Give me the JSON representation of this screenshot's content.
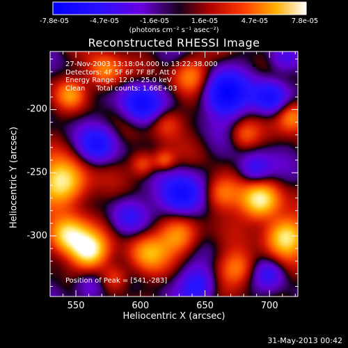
{
  "colorbar": {
    "tick_labels": [
      "-7.8e-05",
      "-4.7e-05",
      "-1.6e-05",
      "1.6e-05",
      "4.7e-05",
      "7.8e-05"
    ],
    "units_label": "(photons cm⁻² s⁻¹ asec⁻²)",
    "range": [
      -7.8e-05,
      7.8e-05
    ]
  },
  "chart_data": {
    "type": "heatmap",
    "title": "Reconstructed RHESSI Image",
    "xlabel": "Heliocentric X (arcsec)",
    "ylabel": "Heliocentric Y (arcsec)",
    "xlim": [
      530,
      722
    ],
    "ylim": [
      -348,
      -154
    ],
    "x_ticks": [
      "550",
      "600",
      "650",
      "700"
    ],
    "y_ticks": [
      "-200",
      "-250",
      "-300"
    ],
    "overlay_lines": [
      "27-Nov-2003 13:18:04.000 to 13:22:38.000",
      "Detectors: 4F 5F 6F 7F 8F, Att 0",
      "Energy Range: 12.0 - 25.0 keV",
      "Clean     Total counts: 1.66E+03"
    ],
    "peak_label": "Position of Peak = [541,-283]",
    "peak_position": [
      541,
      -283
    ],
    "blobs": [
      {
        "x": 540,
        "y": -258,
        "amp": 1.0,
        "s": 13
      },
      {
        "x": 543,
        "y": -300,
        "amp": 0.95,
        "s": 11
      },
      {
        "x": 560,
        "y": -312,
        "amp": 0.9,
        "s": 10
      },
      {
        "x": 605,
        "y": -313,
        "amp": 0.55,
        "s": 11
      },
      {
        "x": 630,
        "y": -300,
        "amp": 0.65,
        "s": 11
      },
      {
        "x": 662,
        "y": -266,
        "amp": 0.6,
        "s": 10
      },
      {
        "x": 693,
        "y": -272,
        "amp": 0.95,
        "s": 11
      },
      {
        "x": 712,
        "y": -300,
        "amp": 0.9,
        "s": 11
      },
      {
        "x": 718,
        "y": -205,
        "amp": 0.7,
        "s": 9
      },
      {
        "x": 572,
        "y": -170,
        "amp": 0.65,
        "s": 10
      },
      {
        "x": 638,
        "y": -172,
        "amp": 0.55,
        "s": 10
      },
      {
        "x": 620,
        "y": -210,
        "amp": 0.45,
        "s": 9
      },
      {
        "x": 602,
        "y": -243,
        "amp": 0.5,
        "s": 7
      },
      {
        "x": 618,
        "y": -240,
        "amp": 0.45,
        "s": 6
      },
      {
        "x": 546,
        "y": -188,
        "amp": 0.45,
        "s": 8
      },
      {
        "x": 675,
        "y": -325,
        "amp": 0.55,
        "s": 10
      },
      {
        "x": 680,
        "y": -220,
        "amp": 0.4,
        "s": 8
      },
      {
        "x": 580,
        "y": -333,
        "amp": 0.45,
        "s": 8
      },
      {
        "x": 600,
        "y": -195,
        "amp": -0.75,
        "s": 11
      },
      {
        "x": 665,
        "y": -188,
        "amp": -0.9,
        "s": 12
      },
      {
        "x": 700,
        "y": -190,
        "amp": -0.7,
        "s": 10
      },
      {
        "x": 630,
        "y": -268,
        "amp": -0.85,
        "s": 12
      },
      {
        "x": 567,
        "y": -228,
        "amp": -0.55,
        "s": 10
      },
      {
        "x": 688,
        "y": -248,
        "amp": -0.55,
        "s": 9
      },
      {
        "x": 645,
        "y": -338,
        "amp": -0.55,
        "s": 10
      },
      {
        "x": 560,
        "y": -340,
        "amp": -0.4,
        "s": 9
      },
      {
        "x": 700,
        "y": -330,
        "amp": -0.35,
        "s": 8
      },
      {
        "x": 710,
        "y": -160,
        "amp": -0.4,
        "s": 8
      },
      {
        "x": 590,
        "y": -285,
        "amp": -0.3,
        "s": 9
      }
    ]
  },
  "footer_date": "31-May-2013 00:42"
}
